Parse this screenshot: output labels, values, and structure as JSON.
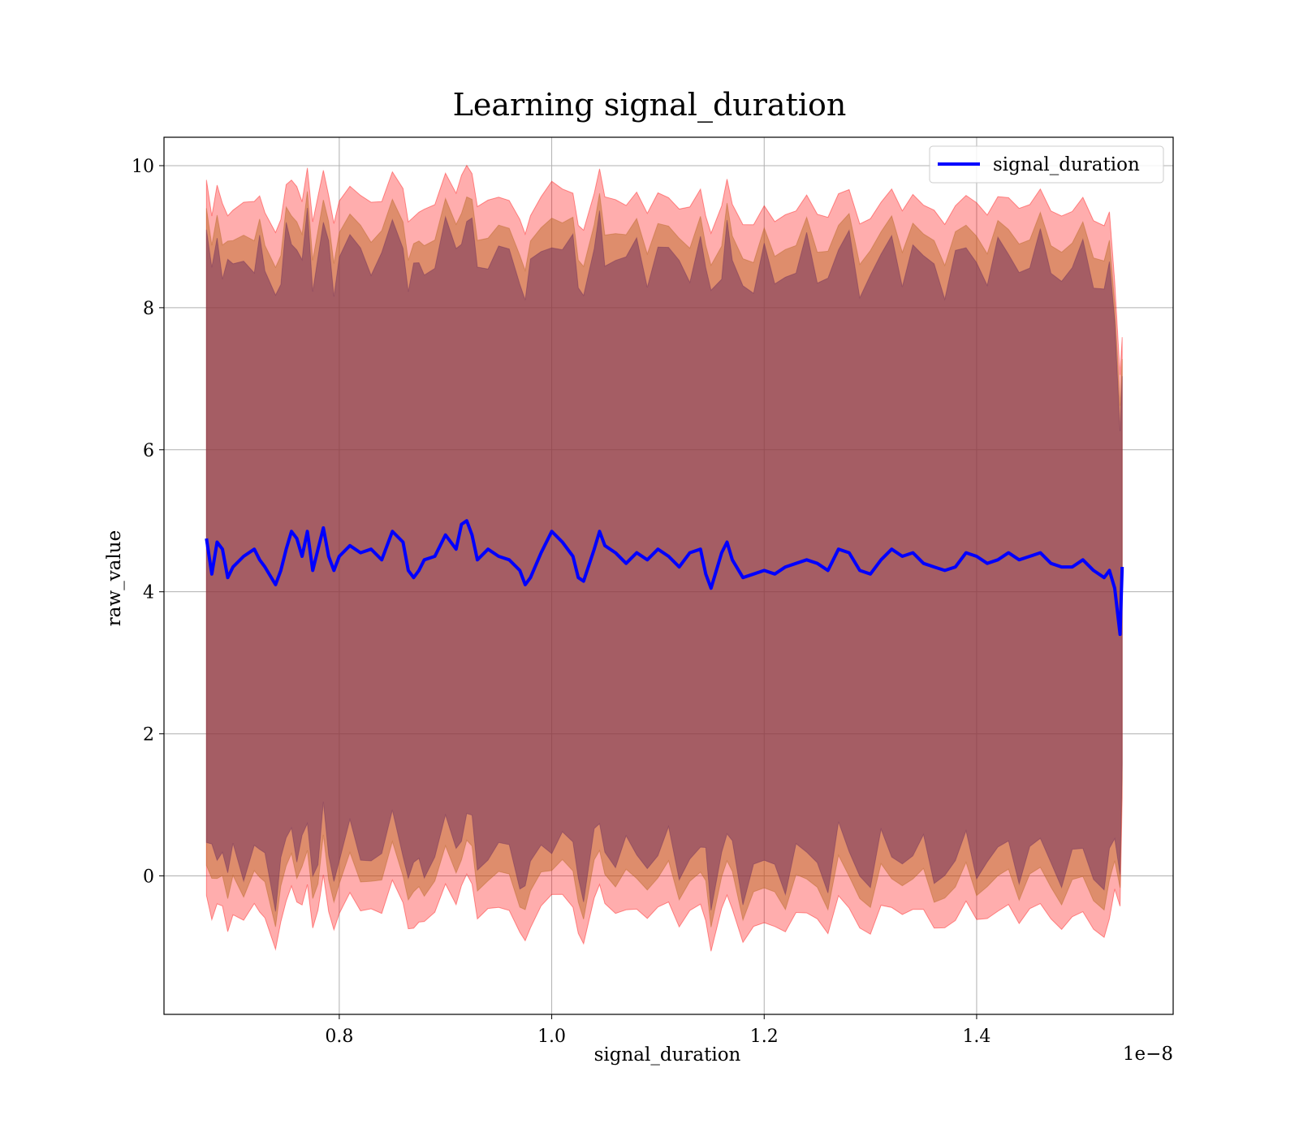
{
  "chart_data": {
    "type": "line",
    "title": "Learning signal_duration",
    "xlabel": "signal_duration",
    "ylabel": "raw_value",
    "x_offset_label": "1e−8",
    "xlim": [
      0.635,
      1.585
    ],
    "ylim": [
      -1.95,
      10.4
    ],
    "x_ticks": [
      0.8,
      1.0,
      1.2,
      1.4
    ],
    "x_tick_labels": [
      "0.8",
      "1.0",
      "1.2",
      "1.4"
    ],
    "y_ticks": [
      0,
      2,
      4,
      6,
      8,
      10
    ],
    "y_tick_labels": [
      "0",
      "2",
      "4",
      "6",
      "8",
      "10"
    ],
    "grid": true,
    "legend": {
      "location": "upper right",
      "entries": [
        {
          "label": "signal_duration",
          "color": "#0000ff"
        }
      ]
    },
    "bands": [
      {
        "description": "mean ± 3σ",
        "color": "#ff0000",
        "opacity": 0.32,
        "offset": 5.0
      },
      {
        "description": "mean ± 2σ",
        "color": "#b5651d",
        "opacity": 0.45,
        "offset": 4.55
      },
      {
        "description": "mean ± 1σ",
        "color": "#6b2d5c",
        "opacity": 0.5,
        "offset": 4.2
      }
    ],
    "series": [
      {
        "name": "signal_duration",
        "color": "#0000ff",
        "x": [
          0.675,
          0.68,
          0.685,
          0.69,
          0.695,
          0.7,
          0.71,
          0.72,
          0.725,
          0.73,
          0.74,
          0.745,
          0.75,
          0.755,
          0.76,
          0.765,
          0.77,
          0.775,
          0.78,
          0.785,
          0.79,
          0.795,
          0.8,
          0.81,
          0.82,
          0.83,
          0.84,
          0.85,
          0.86,
          0.865,
          0.87,
          0.875,
          0.88,
          0.89,
          0.9,
          0.91,
          0.915,
          0.92,
          0.925,
          0.93,
          0.94,
          0.95,
          0.96,
          0.97,
          0.975,
          0.98,
          0.99,
          1.0,
          1.01,
          1.02,
          1.025,
          1.03,
          1.04,
          1.045,
          1.05,
          1.06,
          1.07,
          1.08,
          1.09,
          1.1,
          1.11,
          1.12,
          1.13,
          1.14,
          1.145,
          1.15,
          1.16,
          1.165,
          1.17,
          1.18,
          1.19,
          1.2,
          1.21,
          1.22,
          1.23,
          1.24,
          1.25,
          1.26,
          1.27,
          1.28,
          1.29,
          1.3,
          1.31,
          1.32,
          1.33,
          1.34,
          1.35,
          1.36,
          1.37,
          1.38,
          1.39,
          1.4,
          1.41,
          1.42,
          1.43,
          1.44,
          1.45,
          1.46,
          1.47,
          1.48,
          1.49,
          1.5,
          1.51,
          1.52,
          1.525,
          1.53,
          1.535,
          1.537
        ],
        "values": [
          4.75,
          4.25,
          4.7,
          4.6,
          4.2,
          4.35,
          4.5,
          4.6,
          4.45,
          4.35,
          4.1,
          4.3,
          4.6,
          4.85,
          4.75,
          4.5,
          4.85,
          4.3,
          4.6,
          4.9,
          4.5,
          4.3,
          4.5,
          4.65,
          4.55,
          4.6,
          4.45,
          4.85,
          4.7,
          4.3,
          4.2,
          4.3,
          4.45,
          4.5,
          4.8,
          4.6,
          4.95,
          5.0,
          4.8,
          4.45,
          4.6,
          4.5,
          4.45,
          4.3,
          4.1,
          4.2,
          4.55,
          4.85,
          4.7,
          4.5,
          4.2,
          4.15,
          4.6,
          4.85,
          4.65,
          4.55,
          4.4,
          4.55,
          4.45,
          4.6,
          4.5,
          4.35,
          4.55,
          4.6,
          4.25,
          4.05,
          4.55,
          4.7,
          4.45,
          4.2,
          4.25,
          4.3,
          4.25,
          4.35,
          4.4,
          4.45,
          4.4,
          4.3,
          4.6,
          4.55,
          4.3,
          4.25,
          4.45,
          4.6,
          4.5,
          4.55,
          4.4,
          4.35,
          4.3,
          4.35,
          4.55,
          4.5,
          4.4,
          4.45,
          4.55,
          4.45,
          4.5,
          4.55,
          4.4,
          4.35,
          4.35,
          4.45,
          4.3,
          4.2,
          4.3,
          4.05,
          3.4,
          4.35
        ]
      }
    ]
  }
}
